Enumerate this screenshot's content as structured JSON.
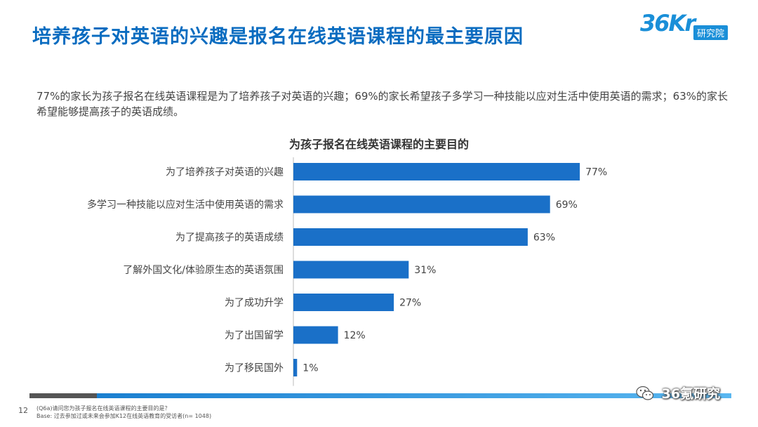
{
  "header": {
    "title": "培养孩子对英语的兴趣是报名在线英语课程的最主要原因",
    "logo_mark": "36Kr",
    "logo_sub": "研究院"
  },
  "summary": "77%的家长为孩子报名在线英语课程是为了培养孩子对英语的兴趣；69%的家长希望孩子多学习一种技能以应对生活中使用英语的需求；63%的家长希望能够提高孩子的英语成绩。",
  "colors": {
    "accent": "#0a6cc0",
    "bar": "#1a70c8"
  },
  "chart_data": {
    "type": "bar",
    "orientation": "horizontal",
    "title": "为孩子报名在线英语课程的主要目的",
    "categories": [
      "为了培养孩子对英语的兴趣",
      "多学习一种技能以应对生活中使用英语的需求",
      "为了提高孩子的英语成绩",
      "了解外国文化/体验原生态的英语氛围",
      "为了成功升学",
      "为了出国留学",
      "为了移民国外"
    ],
    "values": [
      77,
      69,
      63,
      31,
      27,
      12,
      1
    ],
    "value_labels": [
      "77%",
      "69%",
      "63%",
      "31%",
      "27%",
      "12%",
      "1%"
    ],
    "xlim": [
      0,
      100
    ],
    "xlabel": "",
    "ylabel": "",
    "grid": false,
    "legend": "none"
  },
  "footer": {
    "page_number": "12",
    "question": "(Q6a)请问您为孩子报名在线英语课程的主要目的是？",
    "base": "Base: 过去参加过或未来会参加K12在线英语教育的受访者(n= 1048)",
    "watermark": "36氪研究"
  }
}
